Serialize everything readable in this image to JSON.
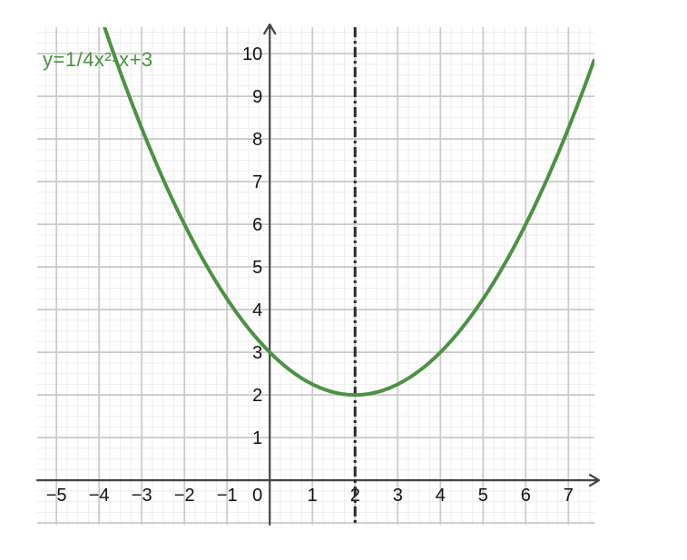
{
  "chart_data": {
    "type": "line",
    "title": "",
    "function_label": "y=1/4x²-x+3",
    "series": [
      {
        "name": "y=1/4x²-x+3",
        "kind": "quadratic",
        "coefficients": {
          "a": 0.25,
          "b": -1,
          "c": 3
        },
        "color": "#4d9145",
        "stroke_width": 4,
        "points": [
          [
            -4,
            11
          ],
          [
            -3,
            8.25
          ],
          [
            -2,
            6
          ],
          [
            -1,
            4.25
          ],
          [
            0,
            3
          ],
          [
            1,
            2.25
          ],
          [
            2,
            2
          ],
          [
            3,
            2.25
          ],
          [
            4,
            3
          ],
          [
            5,
            4.25
          ],
          [
            6,
            6
          ],
          [
            7,
            8.25
          ]
        ]
      }
    ],
    "vertex": [
      2,
      2
    ],
    "y_intercept": [
      0,
      3
    ],
    "axis_of_symmetry": {
      "x": 2,
      "style": "dash-dot",
      "color": "#2a2a2a"
    },
    "xlim": [
      -5.45,
      7.61
    ],
    "ylim": [
      -1.04,
      10.62
    ],
    "x_ticks": [
      {
        "v": -5,
        "label": "−5"
      },
      {
        "v": -4,
        "label": "−4"
      },
      {
        "v": -3,
        "label": "−3"
      },
      {
        "v": -2,
        "label": "−2"
      },
      {
        "v": -1,
        "label": "−1"
      },
      {
        "v": 0,
        "label": "0"
      },
      {
        "v": 1,
        "label": "1"
      },
      {
        "v": 2,
        "label": "2"
      },
      {
        "v": 3,
        "label": "3"
      },
      {
        "v": 4,
        "label": "4"
      },
      {
        "v": 5,
        "label": "5"
      },
      {
        "v": 6,
        "label": "6"
      },
      {
        "v": 7,
        "label": "7"
      }
    ],
    "y_ticks": [
      {
        "v": 1,
        "label": "1"
      },
      {
        "v": 2,
        "label": "2"
      },
      {
        "v": 3,
        "label": "3"
      },
      {
        "v": 4,
        "label": "4"
      },
      {
        "v": 5,
        "label": "5"
      },
      {
        "v": 6,
        "label": "6"
      },
      {
        "v": 7,
        "label": "7"
      },
      {
        "v": 8,
        "label": "8"
      },
      {
        "v": 9,
        "label": "9"
      },
      {
        "v": 10,
        "label": "10"
      }
    ],
    "grid": {
      "major_step": 1,
      "minor_step": 0.25,
      "major_color": "#c9c9c9",
      "minor_color": "#ededed"
    },
    "axes": {
      "color": "#454545",
      "arrows": [
        "x-right",
        "y-top"
      ],
      "tick_color": "#111111"
    },
    "background": "#ffffff"
  }
}
